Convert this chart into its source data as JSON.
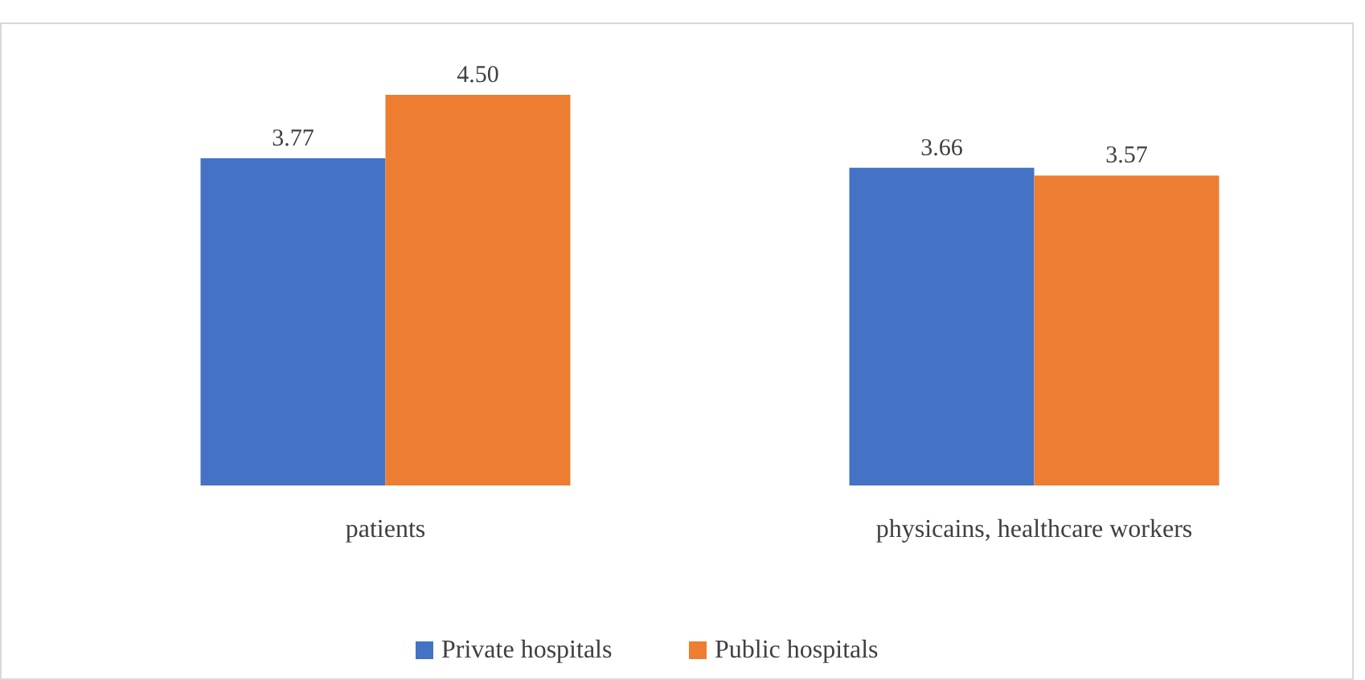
{
  "chart_data": {
    "type": "bar",
    "categories": [
      "patients",
      "physicains, healthcare workers"
    ],
    "series": [
      {
        "name": "Private hospitals",
        "color": "#4472c4",
        "values": [
          3.77,
          3.66
        ],
        "value_labels": [
          "3.77",
          "3.66"
        ]
      },
      {
        "name": "Public hospitals",
        "color": "#ed7d31",
        "values": [
          4.5,
          3.57
        ],
        "value_labels": [
          "4.50",
          "3.57"
        ]
      }
    ],
    "tick_labels": "x",
    "legend": "bottom"
  }
}
